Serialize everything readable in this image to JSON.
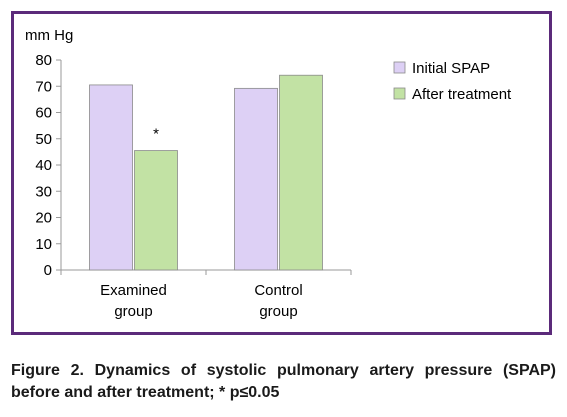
{
  "chart_data": {
    "type": "bar",
    "unit_label": "mm Hg",
    "categories": [
      [
        "Examined",
        "group"
      ],
      [
        "Control",
        "group"
      ]
    ],
    "series": [
      {
        "name": "Initial SPAP",
        "color": "#ddd0f5",
        "values": [
          70.5,
          69.2
        ]
      },
      {
        "name": "After treatment",
        "color": "#c2e2a4",
        "values": [
          45.5,
          74.2
        ]
      }
    ],
    "ylim": [
      0,
      80
    ],
    "yticks": [
      0,
      10,
      20,
      30,
      40,
      50,
      60,
      70,
      80
    ],
    "annotations": [
      {
        "text": "*",
        "category": 0,
        "series": 1
      }
    ],
    "legend_position": "right",
    "grid": false
  },
  "caption": "Figure 2. Dynamics of systolic pulmonary artery pressure (SPAP) before and after treatment; * p≤0.05"
}
